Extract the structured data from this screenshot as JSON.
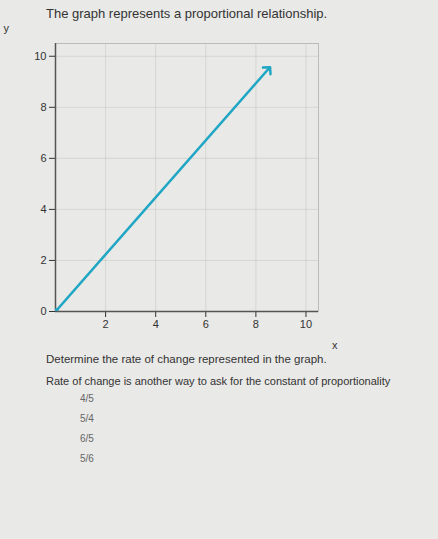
{
  "title": "The graph represents a proportional relationship.",
  "chart_data": {
    "type": "line",
    "x": [
      0,
      8.5
    ],
    "values": [
      0,
      9.5
    ],
    "color": "#1fa6c4",
    "marker": "arrow",
    "xlim": [
      0,
      10.5
    ],
    "ylim": [
      0,
      10.5
    ],
    "xticks": [
      2,
      4,
      6,
      8,
      10
    ],
    "yticks": [
      0,
      2,
      4,
      6,
      8,
      10
    ],
    "x_label": "x",
    "y_label": "y",
    "grid": true
  },
  "question": "Determine the rate of change represented in the graph.",
  "hint": "Rate of change is another way to ask for the constant of proportionality",
  "choices": [
    "4/5",
    "5/4",
    "6/5",
    "5/6"
  ]
}
